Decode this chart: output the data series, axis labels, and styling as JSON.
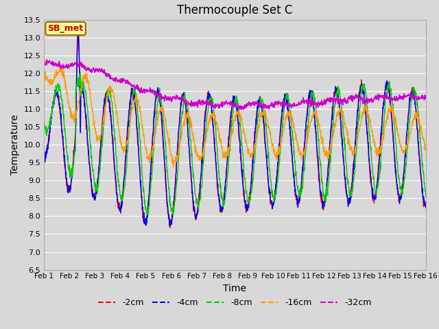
{
  "title": "Thermocouple Set C",
  "xlabel": "Time",
  "ylabel": "Temperature",
  "annotation": "SB_met",
  "ylim": [
    6.5,
    13.5
  ],
  "tick_labels": [
    "Feb 1",
    "Feb 2",
    "Feb 3",
    "Feb 4",
    "Feb 5",
    "Feb 6",
    "Feb 7",
    "Feb 8",
    "Feb 9",
    "Feb 10",
    "Feb 11",
    "Feb 12",
    "Feb 13",
    "Feb 14",
    "Feb 15",
    "Feb 16"
  ],
  "legend_labels": [
    "-2cm",
    "-4cm",
    "-8cm",
    "-16cm",
    "-32cm"
  ],
  "line_colors": [
    "#ff0000",
    "#0000ff",
    "#00cc00",
    "#ff9900",
    "#cc00cc"
  ],
  "bg_color": "#d8d8d8",
  "plot_bg_color": "#d8d8d8",
  "grid_color": "#ffffff",
  "annotation_bg": "#ffff99",
  "annotation_border": "#996600",
  "annotation_text_color": "#cc0000"
}
